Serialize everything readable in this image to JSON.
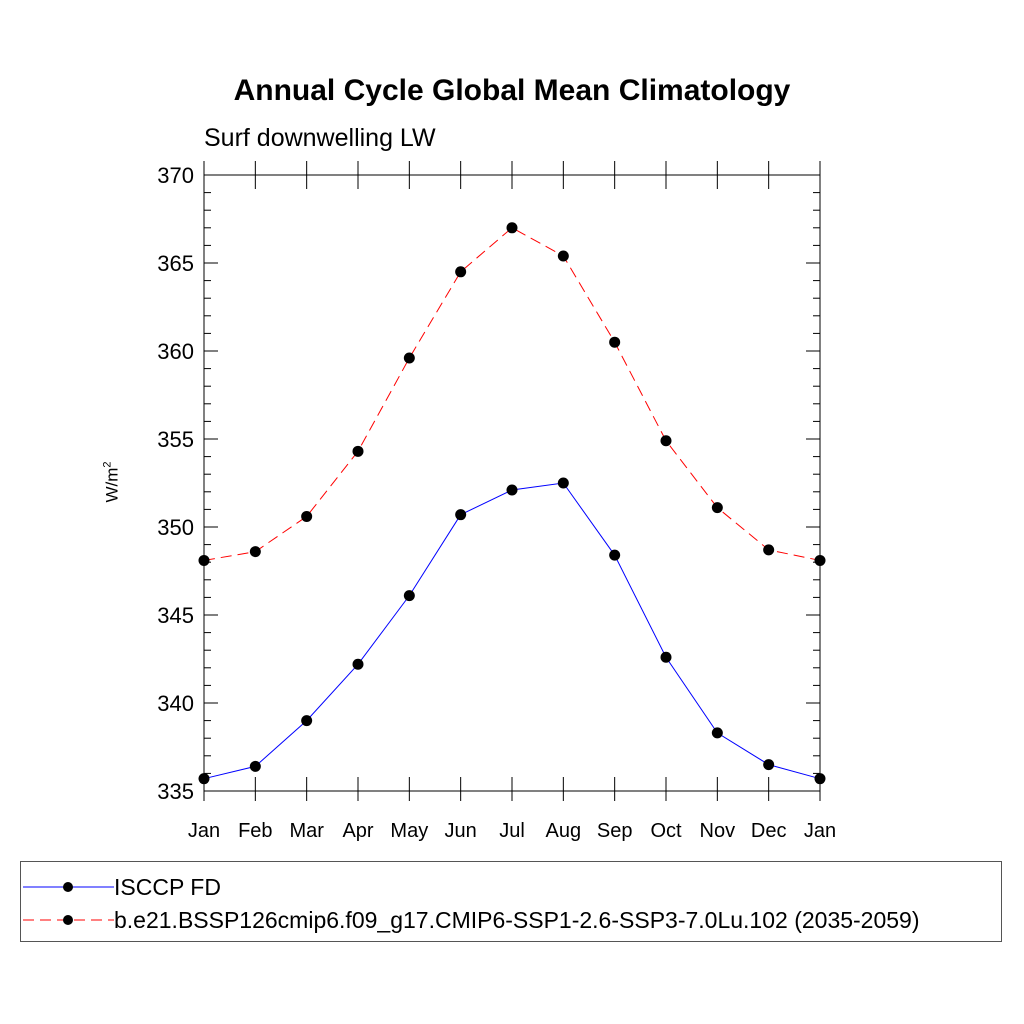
{
  "chart_data": {
    "type": "line",
    "title": "Annual Cycle Global Mean Climatology",
    "subtitle": "Surf downwelling LW",
    "ylabel_base": "W/m",
    "ylabel_sup": "2",
    "categories": [
      "Jan",
      "Feb",
      "Mar",
      "Apr",
      "May",
      "Jun",
      "Jul",
      "Aug",
      "Sep",
      "Oct",
      "Nov",
      "Dec",
      "Jan"
    ],
    "ylim": [
      335,
      370
    ],
    "yticks": [
      "335",
      "340",
      "345",
      "350",
      "355",
      "360",
      "365",
      "370"
    ],
    "series": [
      {
        "name": "ISCCP FD",
        "color": "#0000ff",
        "line_style": "solid",
        "marker": "filled-circle",
        "values": [
          335.7,
          336.4,
          339.0,
          342.2,
          346.1,
          350.7,
          352.1,
          352.5,
          348.4,
          342.6,
          338.3,
          336.5,
          335.7
        ]
      },
      {
        "name": "b.e21.BSSP126cmip6.f09_g17.CMIP6-SSP1-2.6-SSP3-7.0Lu.102 (2035-2059)",
        "color": "#ff0000",
        "line_style": "dashed",
        "marker": "filled-circle",
        "values": [
          348.1,
          348.6,
          350.6,
          354.3,
          359.6,
          364.5,
          367.0,
          365.4,
          360.5,
          354.9,
          351.1,
          348.7,
          348.1
        ]
      }
    ],
    "grid": false,
    "legend_placement": "bottom"
  }
}
